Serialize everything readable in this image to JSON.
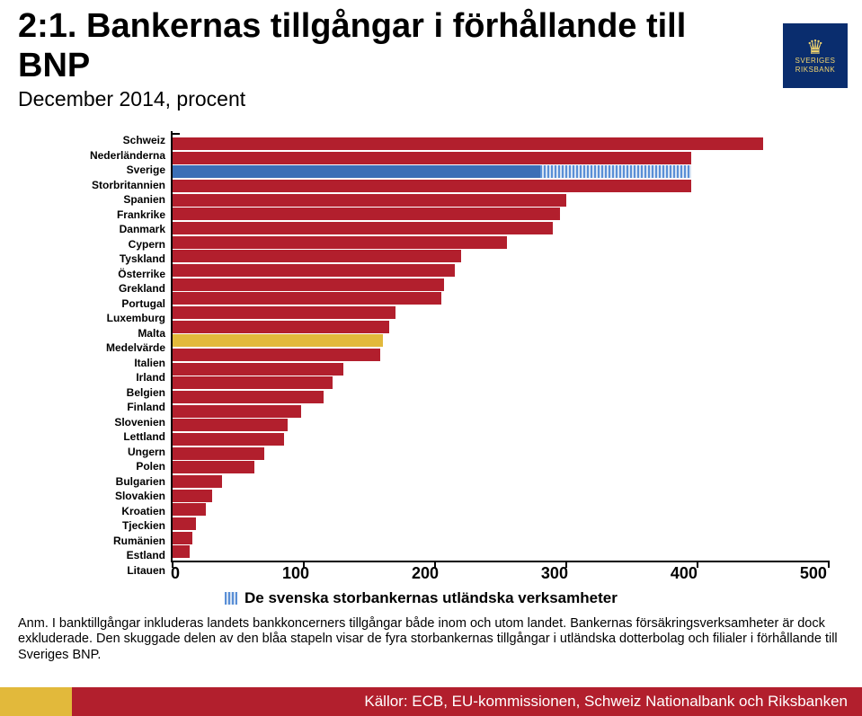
{
  "title_main": "2:1. Bankernas tillgångar i förhållande till BNP",
  "subtitle": "December 2014, procent",
  "logo": {
    "line1": "SVERIGES",
    "line2": "RIKSBANK"
  },
  "chart": {
    "type": "horizontal-bar",
    "x_max": 500,
    "x_tick_step": 100,
    "x_ticks": [
      "0",
      "100",
      "200",
      "300",
      "400",
      "500"
    ],
    "bar_color": "#b21f2d",
    "highlight_color": "#3b6fb6",
    "hatched_highlight": true,
    "mean_bar_color": "#e2b93b",
    "axis_color": "#000000",
    "background_color": "#ffffff",
    "label_fontsize": 12,
    "tick_fontsize": 18,
    "series": [
      {
        "label": "Schweiz",
        "value": 450,
        "kind": "normal"
      },
      {
        "label": "Nederländerna",
        "value": 395,
        "kind": "normal"
      },
      {
        "label": "Sverige",
        "value": 395,
        "kind": "highlight",
        "solid_part": 280
      },
      {
        "label": "Storbritannien",
        "value": 395,
        "kind": "normal"
      },
      {
        "label": "Spanien",
        "value": 300,
        "kind": "normal"
      },
      {
        "label": "Frankrike",
        "value": 295,
        "kind": "normal"
      },
      {
        "label": "Danmark",
        "value": 290,
        "kind": "normal"
      },
      {
        "label": "Cypern",
        "value": 255,
        "kind": "normal"
      },
      {
        "label": "Tyskland",
        "value": 220,
        "kind": "normal"
      },
      {
        "label": "Österrike",
        "value": 215,
        "kind": "normal"
      },
      {
        "label": "Grekland",
        "value": 207,
        "kind": "normal"
      },
      {
        "label": "Portugal",
        "value": 205,
        "kind": "normal"
      },
      {
        "label": "Luxemburg",
        "value": 170,
        "kind": "normal"
      },
      {
        "label": "Malta",
        "value": 165,
        "kind": "normal"
      },
      {
        "label": "Medelvärde",
        "value": 160,
        "kind": "mean"
      },
      {
        "label": "Italien",
        "value": 158,
        "kind": "normal"
      },
      {
        "label": "Irland",
        "value": 130,
        "kind": "normal"
      },
      {
        "label": "Belgien",
        "value": 122,
        "kind": "normal"
      },
      {
        "label": "Finland",
        "value": 115,
        "kind": "normal"
      },
      {
        "label": "Slovenien",
        "value": 98,
        "kind": "normal"
      },
      {
        "label": "Lettland",
        "value": 88,
        "kind": "normal"
      },
      {
        "label": "Ungern",
        "value": 85,
        "kind": "normal"
      },
      {
        "label": "Polen",
        "value": 70,
        "kind": "normal"
      },
      {
        "label": "Bulgarien",
        "value": 62,
        "kind": "normal"
      },
      {
        "label": "Slovakien",
        "value": 38,
        "kind": "normal"
      },
      {
        "label": "Kroatien",
        "value": 30,
        "kind": "normal"
      },
      {
        "label": "Tjeckien",
        "value": 25,
        "kind": "normal"
      },
      {
        "label": "Rumänien",
        "value": 18,
        "kind": "normal"
      },
      {
        "label": "Estland",
        "value": 15,
        "kind": "normal"
      },
      {
        "label": "Litauen",
        "value": 13,
        "kind": "normal"
      }
    ]
  },
  "legend_text": "De svenska storbankernas utländska verksamheter",
  "note_text": "Anm. I banktillgångar inkluderas landets bankkoncerners tillgångar både inom och utom landet. Bankernas försäkringsverksamheter är dock exkluderade. Den skuggade delen av den blåa stapeln visar de fyra storbankernas tillgångar i utländska dotterbolag och filialer i förhållande till Sveriges BNP.",
  "source_text": "Källor: ECB, EU-kommissionen, Schweiz Nationalbank och Riksbanken",
  "footer_colors": {
    "gold": "#e2b93b",
    "red": "#b21f2d"
  }
}
